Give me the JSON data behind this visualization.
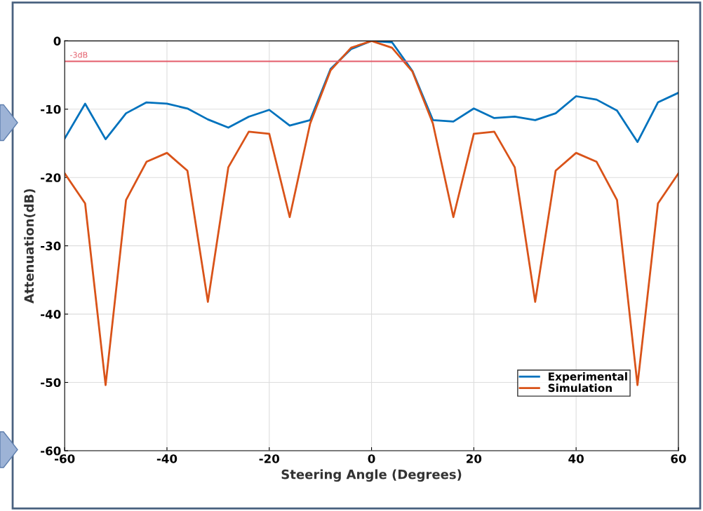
{
  "chart_data": {
    "type": "line",
    "xlabel": "Steering Angle (Degrees)",
    "ylabel": "Attenuation(dB)",
    "x": [
      -60,
      -56,
      -52,
      -48,
      -44,
      -40,
      -36,
      -32,
      -28,
      -24,
      -20,
      -16,
      -12,
      -8,
      -4,
      0,
      4,
      8,
      12,
      16,
      20,
      24,
      28,
      32,
      36,
      40,
      44,
      48,
      52,
      56,
      60
    ],
    "series": [
      {
        "name": "Experimental",
        "color": "#0072bd",
        "values": [
          -14.3,
          -9.2,
          -14.4,
          -10.6,
          -9.0,
          -9.2,
          -9.9,
          -11.5,
          -12.7,
          -11.1,
          -10.1,
          -12.4,
          -11.6,
          -4.1,
          -1.2,
          0,
          -0.2,
          -4.4,
          -11.6,
          -11.8,
          -9.9,
          -11.3,
          -11.1,
          -11.6,
          -10.6,
          -8.1,
          -8.6,
          -10.2,
          -14.8,
          -9.0,
          -7.6
        ]
      },
      {
        "name": "Simulation",
        "color": "#d95319",
        "values": [
          -19.4,
          -23.8,
          -50.4,
          -23.3,
          -17.7,
          -16.4,
          -19.0,
          -38.2,
          -18.5,
          -13.3,
          -13.6,
          -25.8,
          -12.1,
          -4.3,
          -1.0,
          0,
          -1.0,
          -4.5,
          -12.1,
          -25.8,
          -13.6,
          -13.3,
          -18.5,
          -38.2,
          -19.0,
          -16.4,
          -17.7,
          -23.3,
          -50.4,
          -23.8,
          -19.4
        ]
      }
    ],
    "xlim": [
      -60,
      60
    ],
    "xticks": [
      -60,
      -40,
      -20,
      0,
      20,
      40,
      60
    ],
    "ylim": [
      -60,
      0
    ],
    "yticks": [
      -60,
      -50,
      -40,
      -30,
      -20,
      -10,
      0
    ],
    "ref_lines": [
      {
        "axis": "y",
        "value": -3,
        "label": "-3dB",
        "color": "#e35d6a"
      }
    ],
    "grid": true,
    "legend": "bottom right",
    "marker": "none",
    "line_style": "solid"
  }
}
